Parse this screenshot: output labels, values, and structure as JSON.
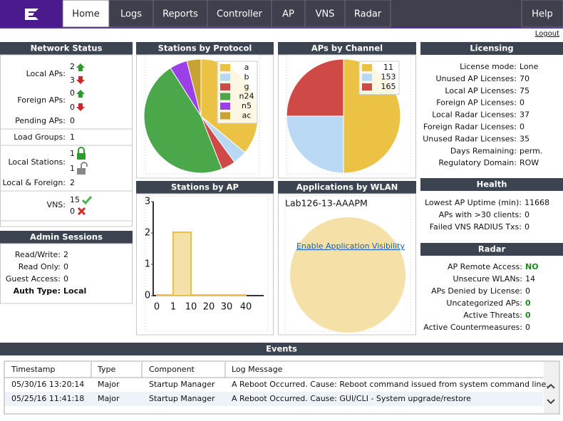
{
  "nav": {
    "tabs": [
      "Home",
      "Logs",
      "Reports",
      "Controller",
      "AP",
      "VNS",
      "Radar"
    ],
    "help": "Help",
    "logout": "Logout"
  },
  "network_status": {
    "title": "Network Status",
    "local_aps": {
      "label": "Local APs:",
      "up": 2,
      "down": 3
    },
    "foreign_aps": {
      "label": "Foreign APs:",
      "up": 0,
      "down": 0
    },
    "pending_aps": {
      "label": "Pending APs:",
      "value": 0
    },
    "load_groups": {
      "label": "Load Groups:",
      "value": 1
    },
    "local_stations": {
      "label": "Local Stations:",
      "locked": 1,
      "unlocked": 1
    },
    "local_foreign": {
      "label": "Local & Foreign:",
      "value": 2
    },
    "vns": {
      "label": "VNS:",
      "ok": 15,
      "error": 0
    }
  },
  "admin_sessions": {
    "title": "Admin Sessions",
    "rows": [
      {
        "label": "Read/Write:",
        "value": 2
      },
      {
        "label": "Read Only:",
        "value": 0
      },
      {
        "label": "Guest Access:",
        "value": 0
      },
      {
        "label": "Auth Type:",
        "value": "Local"
      }
    ]
  },
  "stations_by_protocol": {
    "type": "pie",
    "title": "Stations by Protocol",
    "categories": [
      "a",
      "b",
      "g",
      "n24",
      "n5",
      "ac"
    ],
    "values": [
      36,
      4,
      4,
      47,
      5,
      4
    ],
    "colors": [
      "#ecc244",
      "#b8d8f4",
      "#cf4a46",
      "#4aa74a",
      "#9b3fe6",
      "#c9a236"
    ]
  },
  "aps_by_channel": {
    "type": "pie",
    "title": "APs by Channel",
    "categories": [
      "11",
      "153",
      "165"
    ],
    "values": [
      2,
      1,
      1
    ],
    "colors": [
      "#ecc244",
      "#b8d8f4",
      "#cf4a46"
    ]
  },
  "stations_by_ap": {
    "type": "histogram",
    "title": "Stations by AP",
    "bins": [
      0,
      1,
      10,
      20,
      30,
      40
    ],
    "values": [
      0,
      2,
      0,
      0,
      0
    ],
    "ylim": [
      0,
      3
    ],
    "yticks": [
      0,
      1,
      2,
      3
    ],
    "color": "#f5e0a8",
    "edge": "#ecc244"
  },
  "applications_by_wlan": {
    "title": "Applications by WLAN",
    "wlan": "Lab126-13-AAAPM",
    "link": "Enable Application Visibility"
  },
  "licensing": {
    "title": "Licensing",
    "rows": [
      {
        "label": "License mode:",
        "value": "Lone"
      },
      {
        "label": "Unused AP Licenses:",
        "value": 70
      },
      {
        "label": "Local AP Licenses:",
        "value": 75
      },
      {
        "label": "Foreign AP Licenses:",
        "value": 0
      },
      {
        "label": "Local Radar Licenses:",
        "value": 37
      },
      {
        "label": "Foreign Radar Licenses:",
        "value": 0
      },
      {
        "label": "Unused Radar Licenses:",
        "value": 35
      },
      {
        "label": "Days Remaining:",
        "value": "perm."
      },
      {
        "label": "Regulatory Domain:",
        "value": "ROW"
      }
    ]
  },
  "health": {
    "title": "Health",
    "rows": [
      {
        "label": "Lowest AP Uptime (min):",
        "value": 11668
      },
      {
        "label": "APs with >30 clients:",
        "value": 0
      },
      {
        "label": "Failed VNS RADIUS Txs:",
        "value": 0
      }
    ]
  },
  "radar": {
    "title": "Radar",
    "rows": [
      {
        "label": "AP Remote Access:",
        "value": "NO",
        "color": "#1a8a1a"
      },
      {
        "label": "Unsecure WLANs:",
        "value": 14
      },
      {
        "label": "APs Denied by License:",
        "value": 0
      },
      {
        "label": "Uncategorized APs:",
        "value": 0,
        "color": "#1a8a1a"
      },
      {
        "label": "Active Threats:",
        "value": 0,
        "color": "#1a8a1a"
      },
      {
        "label": "Active Countermeasures:",
        "value": 0
      }
    ]
  },
  "events": {
    "title": "Events",
    "columns": [
      "Timestamp",
      "Type",
      "Component",
      "Log Message"
    ],
    "rows": [
      [
        "05/30/16 13:20:14",
        "Major",
        "Startup Manager",
        "A Reboot Occurred. Cause: Reboot command issued from system command line."
      ],
      [
        "05/25/16 11:41:18",
        "Major",
        "Startup Manager",
        "A Reboot Occurred. Cause: GUI/CLI - System upgrade/restore"
      ]
    ]
  }
}
